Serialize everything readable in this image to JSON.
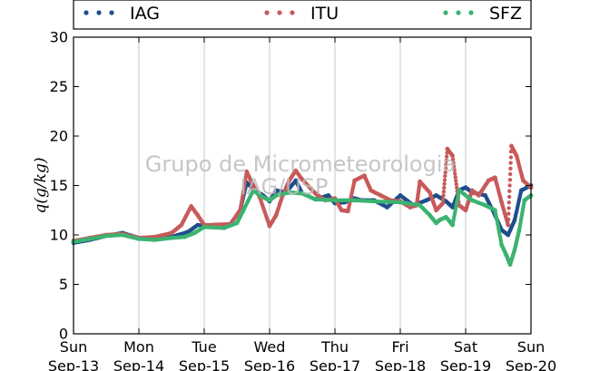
{
  "chart_data": {
    "type": "scatter",
    "ylabel": "q(g/kg)",
    "ylim": [
      0,
      30
    ],
    "yticks": [
      "0",
      "5",
      "10",
      "15",
      "20",
      "25",
      "30"
    ],
    "xlim": [
      0,
      7
    ],
    "xtick_labels": [
      {
        "day": "Sun",
        "date": "Sep-13"
      },
      {
        "day": "Mon",
        "date": "Sep-14"
      },
      {
        "day": "Tue",
        "date": "Sep-15"
      },
      {
        "day": "Wed",
        "date": "Sep-16"
      },
      {
        "day": "Thu",
        "date": "Sep-17"
      },
      {
        "day": "Fri",
        "date": "Sep-18"
      },
      {
        "day": "Sat",
        "date": "Sep-19"
      },
      {
        "day": "Sun",
        "date": "Sep-20"
      }
    ],
    "grid": "vertical",
    "legend_position": "top",
    "watermark": [
      "Grupo de Micrometeorologia",
      "IAG/USP"
    ],
    "series": [
      {
        "name": "IAG",
        "color": "#1f4e8c",
        "points": [
          [
            0,
            9.2
          ],
          [
            0.25,
            9.5
          ],
          [
            0.5,
            9.9
          ],
          [
            0.75,
            10.2
          ],
          [
            1.0,
            9.7
          ],
          [
            1.25,
            9.6
          ],
          [
            1.5,
            9.8
          ],
          [
            1.75,
            10.3
          ],
          [
            1.9,
            11.0
          ],
          [
            2.1,
            10.9
          ],
          [
            2.4,
            11.1
          ],
          [
            2.55,
            12.5
          ],
          [
            2.65,
            15.3
          ],
          [
            2.75,
            14.6
          ],
          [
            2.9,
            14.0
          ],
          [
            3.0,
            13.4
          ],
          [
            3.1,
            14.5
          ],
          [
            3.25,
            14.3
          ],
          [
            3.4,
            15.5
          ],
          [
            3.5,
            14.2
          ],
          [
            3.7,
            13.6
          ],
          [
            3.9,
            14.0
          ],
          [
            4.0,
            13.2
          ],
          [
            4.15,
            13.3
          ],
          [
            4.3,
            13.7
          ],
          [
            4.4,
            13.5
          ],
          [
            4.6,
            13.5
          ],
          [
            4.8,
            12.8
          ],
          [
            5.0,
            14.0
          ],
          [
            5.2,
            13.0
          ],
          [
            5.4,
            13.5
          ],
          [
            5.55,
            14.0
          ],
          [
            5.7,
            13.4
          ],
          [
            5.8,
            12.8
          ],
          [
            5.9,
            14.5
          ],
          [
            6.0,
            14.8
          ],
          [
            6.1,
            14.3
          ],
          [
            6.3,
            14.0
          ],
          [
            6.45,
            12.0
          ],
          [
            6.55,
            10.5
          ],
          [
            6.65,
            10.0
          ],
          [
            6.75,
            11.5
          ],
          [
            6.85,
            14.5
          ],
          [
            7.0,
            15.0
          ]
        ]
      },
      {
        "name": "ITU",
        "color": "#c85a5a",
        "points": [
          [
            0,
            9.4
          ],
          [
            0.25,
            9.7
          ],
          [
            0.5,
            10.0
          ],
          [
            0.75,
            10.1
          ],
          [
            1.0,
            9.7
          ],
          [
            1.25,
            9.8
          ],
          [
            1.5,
            10.2
          ],
          [
            1.65,
            11.0
          ],
          [
            1.8,
            12.9
          ],
          [
            1.9,
            12.0
          ],
          [
            2.0,
            11.0
          ],
          [
            2.4,
            11.1
          ],
          [
            2.55,
            12.5
          ],
          [
            2.65,
            16.4
          ],
          [
            2.75,
            15.0
          ],
          [
            2.85,
            13.8
          ],
          [
            3.0,
            10.9
          ],
          [
            3.1,
            12.0
          ],
          [
            3.2,
            14.0
          ],
          [
            3.3,
            15.5
          ],
          [
            3.4,
            16.5
          ],
          [
            3.5,
            15.6
          ],
          [
            3.7,
            14.2
          ],
          [
            3.85,
            13.5
          ],
          [
            4.0,
            13.7
          ],
          [
            4.1,
            12.5
          ],
          [
            4.2,
            12.4
          ],
          [
            4.3,
            15.5
          ],
          [
            4.45,
            16.0
          ],
          [
            4.55,
            14.5
          ],
          [
            4.7,
            14.0
          ],
          [
            4.85,
            13.5
          ],
          [
            5.0,
            13.4
          ],
          [
            5.15,
            12.8
          ],
          [
            5.25,
            13.0
          ],
          [
            5.3,
            15.4
          ],
          [
            5.45,
            14.3
          ],
          [
            5.55,
            12.5
          ],
          [
            5.65,
            13.2
          ],
          [
            5.72,
            18.7
          ],
          [
            5.8,
            18.0
          ],
          [
            5.9,
            13.0
          ],
          [
            6.0,
            12.5
          ],
          [
            6.1,
            14.5
          ],
          [
            6.2,
            14.0
          ],
          [
            6.35,
            15.5
          ],
          [
            6.45,
            15.8
          ],
          [
            6.55,
            13.3
          ],
          [
            6.65,
            11.0
          ],
          [
            6.7,
            19.0
          ],
          [
            6.78,
            18.0
          ],
          [
            6.88,
            15.5
          ],
          [
            7.0,
            14.8
          ]
        ]
      },
      {
        "name": "SFZ",
        "color": "#3cb371",
        "points": [
          [
            0,
            9.3
          ],
          [
            0.25,
            9.6
          ],
          [
            0.5,
            9.9
          ],
          [
            0.75,
            10.0
          ],
          [
            1.0,
            9.6
          ],
          [
            1.25,
            9.5
          ],
          [
            1.5,
            9.7
          ],
          [
            1.7,
            9.8
          ],
          [
            1.85,
            10.2
          ],
          [
            2.0,
            10.8
          ],
          [
            2.3,
            10.7
          ],
          [
            2.5,
            11.2
          ],
          [
            2.6,
            12.5
          ],
          [
            2.75,
            14.5
          ],
          [
            2.9,
            13.8
          ],
          [
            3.0,
            13.5
          ],
          [
            3.1,
            14.0
          ],
          [
            3.3,
            14.3
          ],
          [
            3.5,
            14.2
          ],
          [
            3.7,
            13.6
          ],
          [
            4.0,
            13.5
          ],
          [
            4.3,
            13.5
          ],
          [
            4.6,
            13.4
          ],
          [
            5.0,
            13.3
          ],
          [
            5.3,
            13.0
          ],
          [
            5.45,
            12.0
          ],
          [
            5.55,
            11.2
          ],
          [
            5.6,
            11.5
          ],
          [
            5.7,
            11.8
          ],
          [
            5.8,
            11.0
          ],
          [
            5.9,
            14.5
          ],
          [
            6.1,
            13.5
          ],
          [
            6.3,
            13.0
          ],
          [
            6.45,
            12.5
          ],
          [
            6.55,
            9.0
          ],
          [
            6.62,
            8.0
          ],
          [
            6.68,
            7.0
          ],
          [
            6.75,
            8.5
          ],
          [
            6.82,
            10.5
          ],
          [
            6.9,
            13.5
          ],
          [
            7.0,
            14.0
          ]
        ]
      }
    ]
  }
}
